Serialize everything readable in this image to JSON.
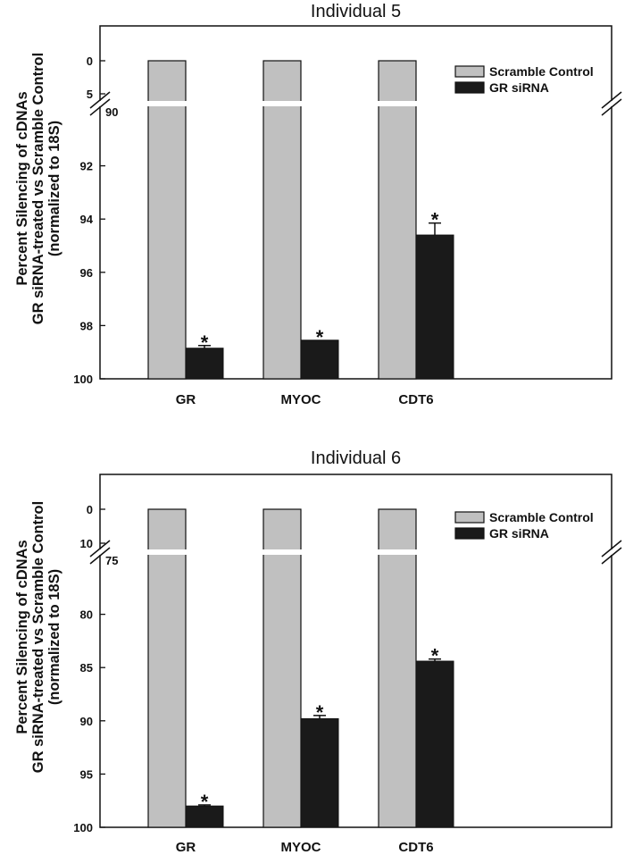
{
  "chart_data": [
    {
      "type": "bar",
      "title": "Individual 5",
      "ylabel_lines": [
        "Percent Silencing of cDNAs",
        "GR siRNA-treated vs Scramble Control",
        "(normalized to 18S)"
      ],
      "xlabel": "",
      "categories": [
        "GR",
        "MYOC",
        "CDT6"
      ],
      "axis_inverted": true,
      "axis_break": {
        "upper_segment": [
          0,
          5
        ],
        "lower_segment": [
          90,
          100
        ]
      },
      "upper_ticks": [
        "0",
        "5"
      ],
      "lower_ticks": [
        "90",
        "92",
        "94",
        "96",
        "98",
        "100"
      ],
      "series": [
        {
          "name": "Scramble Control",
          "color": "#c0c0c0",
          "values": [
            0,
            0,
            0
          ],
          "errors": [
            0,
            0,
            0
          ]
        },
        {
          "name": "GR siRNA",
          "color": "#1a1a1a",
          "values": [
            98.85,
            98.55,
            94.6
          ],
          "errors": [
            0.1,
            0,
            0.45
          ]
        }
      ],
      "annotations": [
        "*",
        "*",
        "*"
      ],
      "legend": [
        "Scramble Control",
        "GR siRNA"
      ]
    },
    {
      "type": "bar",
      "title": "Individual 6",
      "ylabel_lines": [
        "Percent Silencing of cDNAs",
        "GR siRNA-treated vs Scramble Control",
        "(normalized to 18S)"
      ],
      "xlabel": "",
      "categories": [
        "GR",
        "MYOC",
        "CDT6"
      ],
      "axis_inverted": true,
      "axis_break": {
        "upper_segment": [
          0,
          10
        ],
        "lower_segment": [
          75,
          100
        ]
      },
      "upper_ticks": [
        "0",
        "10"
      ],
      "lower_ticks": [
        "75",
        "80",
        "85",
        "90",
        "95",
        "100"
      ],
      "series": [
        {
          "name": "Scramble Control",
          "color": "#c0c0c0",
          "values": [
            0,
            0,
            0
          ],
          "errors": [
            0,
            0,
            0
          ]
        },
        {
          "name": "GR siRNA",
          "color": "#1a1a1a",
          "values": [
            98.0,
            89.8,
            84.4
          ],
          "errors": [
            0.1,
            0.3,
            0.2
          ]
        }
      ],
      "annotations": [
        "*",
        "*",
        "*"
      ],
      "legend": [
        "Scramble Control",
        "GR siRNA"
      ]
    }
  ]
}
